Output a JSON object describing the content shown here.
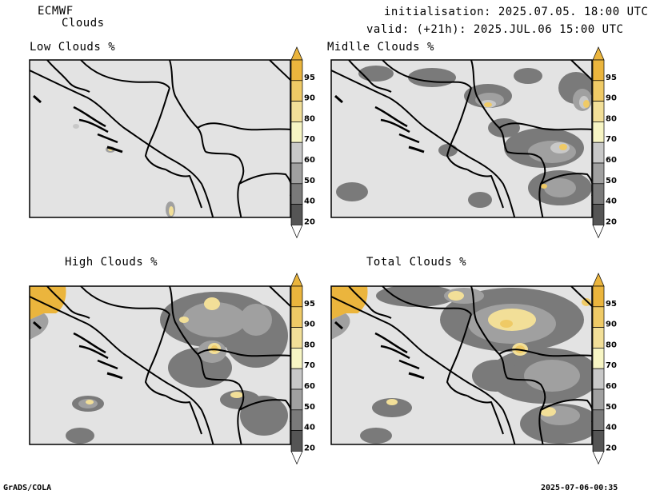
{
  "header": {
    "model": "ECMWF",
    "product": "Clouds",
    "init": "initialisation: 2025.07.05. 18:00 UTC",
    "valid": "valid: (+21h): 2025.JUL.06 15:00 UTC"
  },
  "panels": [
    {
      "title": "Low Clouds %"
    },
    {
      "title": "Midlle Clouds %"
    },
    {
      "title": "High Clouds %"
    },
    {
      "title": "Total Clouds %"
    }
  ],
  "colorbar": {
    "ticks": [
      "95",
      "90",
      "80",
      "70",
      "60",
      "50",
      "40",
      "20"
    ],
    "colors": {
      "lt20": "#ffffff",
      "c20": "#555555",
      "c40": "#7a7a7a",
      "c50": "#a0a0a0",
      "c60": "#c8c8c8",
      "c70": "#f7f5c4",
      "c80": "#f2df98",
      "c90": "#efca66",
      "c95": "#ebb53d"
    }
  },
  "map": {
    "background": "#e3e3e3",
    "border_color": "#000000"
  },
  "footer": {
    "left": "GrADS/COLA",
    "right": "2025-07-06-00:35"
  }
}
